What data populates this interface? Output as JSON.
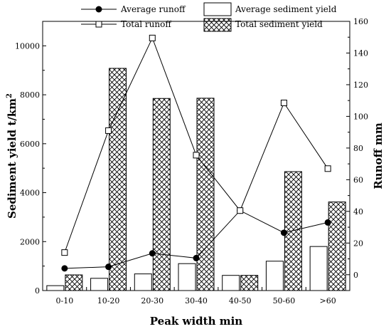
{
  "chart_data": {
    "type": "bar",
    "categories": [
      "0-10",
      "10-20",
      "20-30",
      "30-40",
      "40-50",
      "50-60",
      ">60"
    ],
    "xlabel": "Peak width min",
    "ylabel_left": "Sediment yield t/km",
    "ylabel_left_sup": "2",
    "ylabel_right": "Runoff mm",
    "ylim_left": [
      0,
      11000
    ],
    "ylim_right": [
      -10,
      160
    ],
    "yticks_left": [
      "0",
      "2000",
      "4000",
      "6000",
      "8000",
      "10000"
    ],
    "yticks_right": [
      "0",
      "20",
      "40",
      "60",
      "80",
      "100",
      "120",
      "140",
      "160"
    ],
    "series": [
      {
        "name": "Average sediment yield",
        "kind": "bar",
        "pattern": "hollow",
        "axis": "left",
        "values": [
          200,
          500,
          680,
          1100,
          620,
          1200,
          1800
        ]
      },
      {
        "name": "Total sediment yield",
        "kind": "bar",
        "pattern": "crosshatch",
        "axis": "left",
        "values": [
          640,
          9080,
          7850,
          7860,
          620,
          4860,
          3620
        ]
      },
      {
        "name": "Average runoff",
        "kind": "line",
        "marker": "filled-circle",
        "axis": "right",
        "values": [
          4,
          5,
          13.5,
          10.5,
          40.5,
          26.5,
          33
        ]
      },
      {
        "name": "Total runoff",
        "kind": "line",
        "marker": "hollow-square",
        "axis": "right",
        "values": [
          14,
          91,
          149.5,
          75.5,
          40.5,
          108.5,
          67
        ]
      }
    ],
    "legend": [
      "Average runoff",
      "Average sediment yield",
      "Total runoff",
      "Total sediment yield"
    ],
    "legend_position": "top",
    "grid": false
  }
}
